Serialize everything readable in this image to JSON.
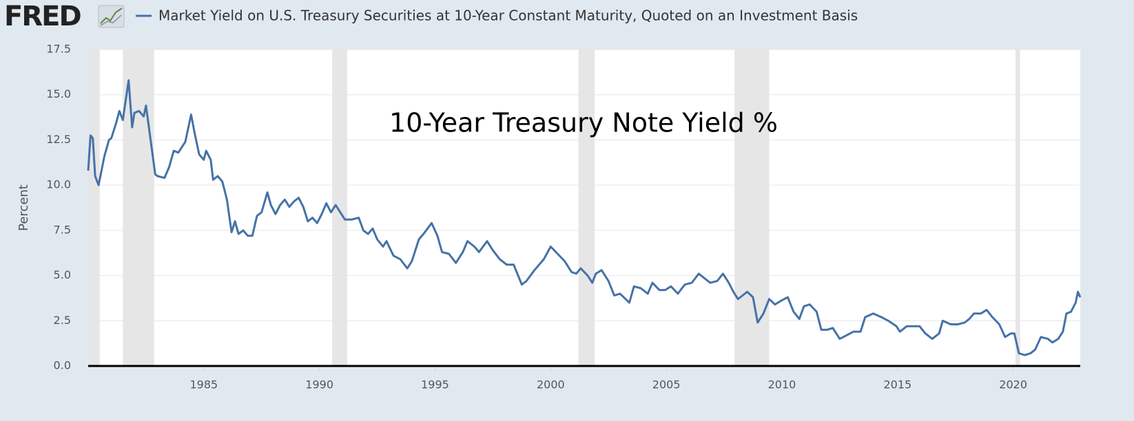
{
  "logo": "FRED",
  "chart_data": {
    "type": "line",
    "annotation": "10-Year Treasury Note Yield %",
    "ylabel": "Percent",
    "xlim": [
      1980,
      2022.9
    ],
    "xticks": [
      1985,
      1990,
      1995,
      2000,
      2005,
      2010,
      2015,
      2020
    ],
    "ylim": [
      0,
      17.5
    ],
    "yticks": [
      {
        "value": 0,
        "label": "0.0"
      },
      2.5,
      {
        "value": 5,
        "label": "5.0"
      },
      7.5,
      {
        "value": 10,
        "label": "10.0"
      },
      12.5,
      {
        "value": 15,
        "label": "15.0"
      },
      17.5
    ],
    "grid": true,
    "recessions": [
      [
        1980.0,
        1980.5
      ],
      [
        1981.5,
        1982.85
      ],
      [
        1990.55,
        1991.2
      ],
      [
        2001.2,
        2001.9
      ],
      [
        2007.95,
        2009.45
      ],
      [
        2020.1,
        2020.3
      ]
    ],
    "recession_color": "#e6e6e6",
    "x": [
      1980.0,
      1980.1,
      1980.2,
      1980.3,
      1980.45,
      1980.7,
      1980.9,
      1981.0,
      1981.2,
      1981.35,
      1981.5,
      1981.75,
      1981.9,
      1982.0,
      1982.2,
      1982.4,
      1982.5,
      1982.7,
      1982.9,
      1983.0,
      1983.3,
      1983.5,
      1983.7,
      1983.9,
      1984.2,
      1984.45,
      1984.6,
      1984.8,
      1985.0,
      1985.1,
      1985.3,
      1985.4,
      1985.6,
      1985.8,
      1986.0,
      1986.2,
      1986.35,
      1986.5,
      1986.7,
      1986.9,
      1987.1,
      1987.3,
      1987.5,
      1987.75,
      1987.9,
      1988.1,
      1988.3,
      1988.5,
      1988.7,
      1988.9,
      1989.1,
      1989.3,
      1989.5,
      1989.7,
      1989.9,
      1990.1,
      1990.3,
      1990.5,
      1990.7,
      1990.9,
      1991.1,
      1991.4,
      1991.7,
      1991.9,
      1992.1,
      1992.3,
      1992.5,
      1992.75,
      1992.9,
      1993.2,
      1993.5,
      1993.8,
      1994.0,
      1994.3,
      1994.5,
      1994.85,
      1995.1,
      1995.3,
      1995.6,
      1995.9,
      1996.2,
      1996.4,
      1996.7,
      1996.9,
      1997.25,
      1997.5,
      1997.8,
      1998.1,
      1998.4,
      1998.75,
      1998.95,
      1999.3,
      1999.7,
      2000.0,
      2000.3,
      2000.6,
      2000.9,
      2001.1,
      2001.3,
      2001.6,
      2001.8,
      2001.95,
      2002.2,
      2002.5,
      2002.75,
      2003.0,
      2003.4,
      2003.6,
      2003.9,
      2004.2,
      2004.4,
      2004.7,
      2004.95,
      2005.2,
      2005.5,
      2005.8,
      2006.1,
      2006.4,
      2006.7,
      2006.9,
      2007.2,
      2007.45,
      2007.7,
      2007.9,
      2008.1,
      2008.3,
      2008.5,
      2008.75,
      2008.95,
      2009.2,
      2009.45,
      2009.7,
      2009.95,
      2010.25,
      2010.5,
      2010.75,
      2010.95,
      2011.2,
      2011.5,
      2011.7,
      2011.95,
      2012.2,
      2012.5,
      2012.8,
      2013.1,
      2013.4,
      2013.6,
      2013.95,
      2014.3,
      2014.6,
      2014.95,
      2015.1,
      2015.4,
      2015.7,
      2015.95,
      2016.2,
      2016.5,
      2016.8,
      2016.95,
      2017.3,
      2017.6,
      2017.9,
      2018.1,
      2018.3,
      2018.6,
      2018.85,
      2019.1,
      2019.4,
      2019.65,
      2019.9,
      2020.05,
      2020.25,
      2020.5,
      2020.75,
      2020.95,
      2021.2,
      2021.5,
      2021.7,
      2021.95,
      2022.15,
      2022.3,
      2022.5,
      2022.7,
      2022.8,
      2022.9
    ],
    "series": [
      {
        "name": "Market Yield on U.S. Treasury Securities at 10-Year Constant Maturity, Quoted on an Investment Basis",
        "color": "#4572a7",
        "values": [
          10.8,
          12.75,
          12.6,
          10.5,
          10.0,
          11.6,
          12.5,
          12.6,
          13.4,
          14.1,
          13.6,
          15.8,
          13.2,
          14.0,
          14.1,
          13.8,
          14.4,
          12.5,
          10.6,
          10.5,
          10.4,
          11.0,
          11.9,
          11.8,
          12.4,
          13.9,
          12.9,
          11.7,
          11.4,
          11.9,
          11.4,
          10.3,
          10.5,
          10.2,
          9.2,
          7.4,
          8.0,
          7.3,
          7.5,
          7.2,
          7.2,
          8.3,
          8.5,
          9.6,
          8.9,
          8.4,
          8.9,
          9.2,
          8.8,
          9.1,
          9.3,
          8.8,
          8.0,
          8.2,
          7.9,
          8.4,
          9.0,
          8.5,
          8.9,
          8.5,
          8.1,
          8.1,
          8.2,
          7.5,
          7.3,
          7.6,
          7.0,
          6.6,
          6.9,
          6.1,
          5.9,
          5.4,
          5.8,
          7.0,
          7.3,
          7.9,
          7.2,
          6.3,
          6.2,
          5.7,
          6.3,
          6.9,
          6.6,
          6.3,
          6.9,
          6.4,
          5.9,
          5.6,
          5.6,
          4.5,
          4.7,
          5.3,
          5.9,
          6.6,
          6.2,
          5.8,
          5.2,
          5.1,
          5.4,
          5.0,
          4.6,
          5.1,
          5.3,
          4.7,
          3.9,
          4.0,
          3.5,
          4.4,
          4.3,
          4.0,
          4.6,
          4.2,
          4.2,
          4.4,
          4.0,
          4.5,
          4.6,
          5.1,
          4.8,
          4.6,
          4.7,
          5.1,
          4.6,
          4.1,
          3.7,
          3.9,
          4.1,
          3.8,
          2.4,
          2.9,
          3.7,
          3.4,
          3.6,
          3.8,
          3.0,
          2.6,
          3.3,
          3.4,
          3.0,
          2.0,
          2.0,
          2.1,
          1.5,
          1.7,
          1.9,
          1.9,
          2.7,
          2.9,
          2.7,
          2.5,
          2.2,
          1.9,
          2.2,
          2.2,
          2.2,
          1.8,
          1.5,
          1.8,
          2.5,
          2.3,
          2.3,
          2.4,
          2.6,
          2.9,
          2.9,
          3.1,
          2.7,
          2.3,
          1.6,
          1.8,
          1.8,
          0.7,
          0.6,
          0.7,
          0.9,
          1.6,
          1.5,
          1.3,
          1.5,
          1.9,
          2.9,
          3.0,
          3.5,
          4.1,
          3.8
        ]
      }
    ]
  }
}
